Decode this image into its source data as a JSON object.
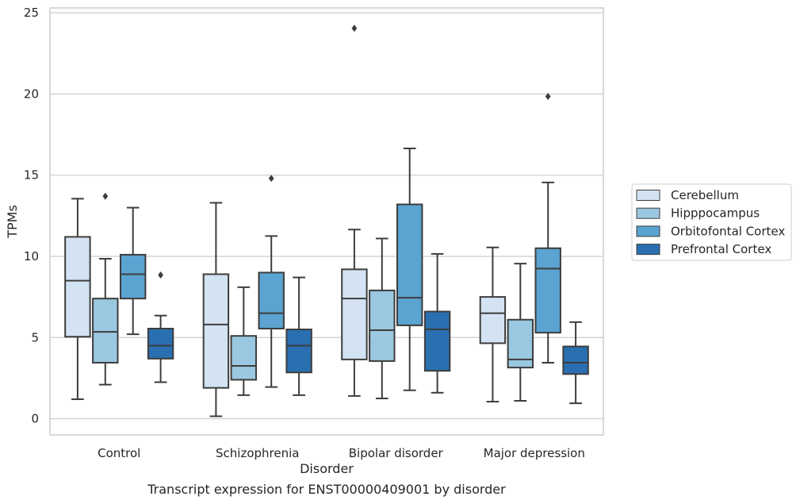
{
  "chart_data": {
    "type": "box",
    "title": "",
    "caption": "Transcript expression for ENST00000409001 by disorder",
    "xlabel": "Disorder",
    "ylabel": "TPMs",
    "ylim": [
      -1,
      25.3
    ],
    "yticks": [
      0,
      5,
      10,
      15,
      20,
      25
    ],
    "grid": "horizontal",
    "legend_position": "right",
    "categories": [
      "Control",
      "Schizophrenia",
      "Bipolar disorder",
      "Major depression"
    ],
    "series": [
      {
        "name": "Cerebellum",
        "color": "#d3e3f3",
        "boxes": [
          {
            "whisker_low": 1.2,
            "q1": 5.05,
            "median": 8.5,
            "q3": 11.2,
            "whisker_high": 13.55,
            "outliers": []
          },
          {
            "whisker_low": 0.15,
            "q1": 1.9,
            "median": 5.8,
            "q3": 8.9,
            "whisker_high": 13.3,
            "outliers": []
          },
          {
            "whisker_low": 1.4,
            "q1": 3.65,
            "median": 7.4,
            "q3": 9.2,
            "whisker_high": 11.65,
            "outliers": [
              24.05
            ]
          },
          {
            "whisker_low": 1.05,
            "q1": 4.65,
            "median": 6.5,
            "q3": 7.5,
            "whisker_high": 10.55,
            "outliers": []
          }
        ]
      },
      {
        "name": "Hipppocampus",
        "color": "#9ac8e0",
        "boxes": [
          {
            "whisker_low": 2.1,
            "q1": 3.45,
            "median": 5.35,
            "q3": 7.4,
            "whisker_high": 9.85,
            "outliers": [
              13.7
            ]
          },
          {
            "whisker_low": 1.45,
            "q1": 2.4,
            "median": 3.25,
            "q3": 5.1,
            "whisker_high": 8.1,
            "outliers": []
          },
          {
            "whisker_low": 1.25,
            "q1": 3.55,
            "median": 5.45,
            "q3": 7.9,
            "whisker_high": 11.1,
            "outliers": []
          },
          {
            "whisker_low": 1.1,
            "q1": 3.15,
            "median": 3.65,
            "q3": 6.1,
            "whisker_high": 9.55,
            "outliers": []
          }
        ]
      },
      {
        "name": "Orbitofontal Cortex",
        "color": "#5ba3d0",
        "boxes": [
          {
            "whisker_low": 5.2,
            "q1": 7.4,
            "median": 8.9,
            "q3": 10.1,
            "whisker_high": 13.0,
            "outliers": []
          },
          {
            "whisker_low": 1.95,
            "q1": 5.55,
            "median": 6.5,
            "q3": 9.0,
            "whisker_high": 11.25,
            "outliers": [
              14.8
            ]
          },
          {
            "whisker_low": 1.75,
            "q1": 5.75,
            "median": 7.45,
            "q3": 13.2,
            "whisker_high": 16.65,
            "outliers": []
          },
          {
            "whisker_low": 3.45,
            "q1": 5.3,
            "median": 9.25,
            "q3": 10.5,
            "whisker_high": 14.55,
            "outliers": [
              19.85
            ]
          }
        ]
      },
      {
        "name": "Prefrontal Cortex",
        "color": "#2a70b1",
        "boxes": [
          {
            "whisker_low": 2.25,
            "q1": 3.7,
            "median": 4.5,
            "q3": 5.55,
            "whisker_high": 6.35,
            "outliers": [
              8.85
            ]
          },
          {
            "whisker_low": 1.45,
            "q1": 2.85,
            "median": 4.5,
            "q3": 5.5,
            "whisker_high": 8.7,
            "outliers": []
          },
          {
            "whisker_low": 1.6,
            "q1": 2.95,
            "median": 5.5,
            "q3": 6.6,
            "whisker_high": 10.15,
            "outliers": []
          },
          {
            "whisker_low": 0.95,
            "q1": 2.75,
            "median": 3.45,
            "q3": 4.45,
            "whisker_high": 5.95,
            "outliers": []
          }
        ]
      }
    ],
    "colors": {
      "box_edge": "#3d3d3d",
      "grid": "#cccccc",
      "frame": "#cccccc",
      "text": "#262626"
    }
  }
}
